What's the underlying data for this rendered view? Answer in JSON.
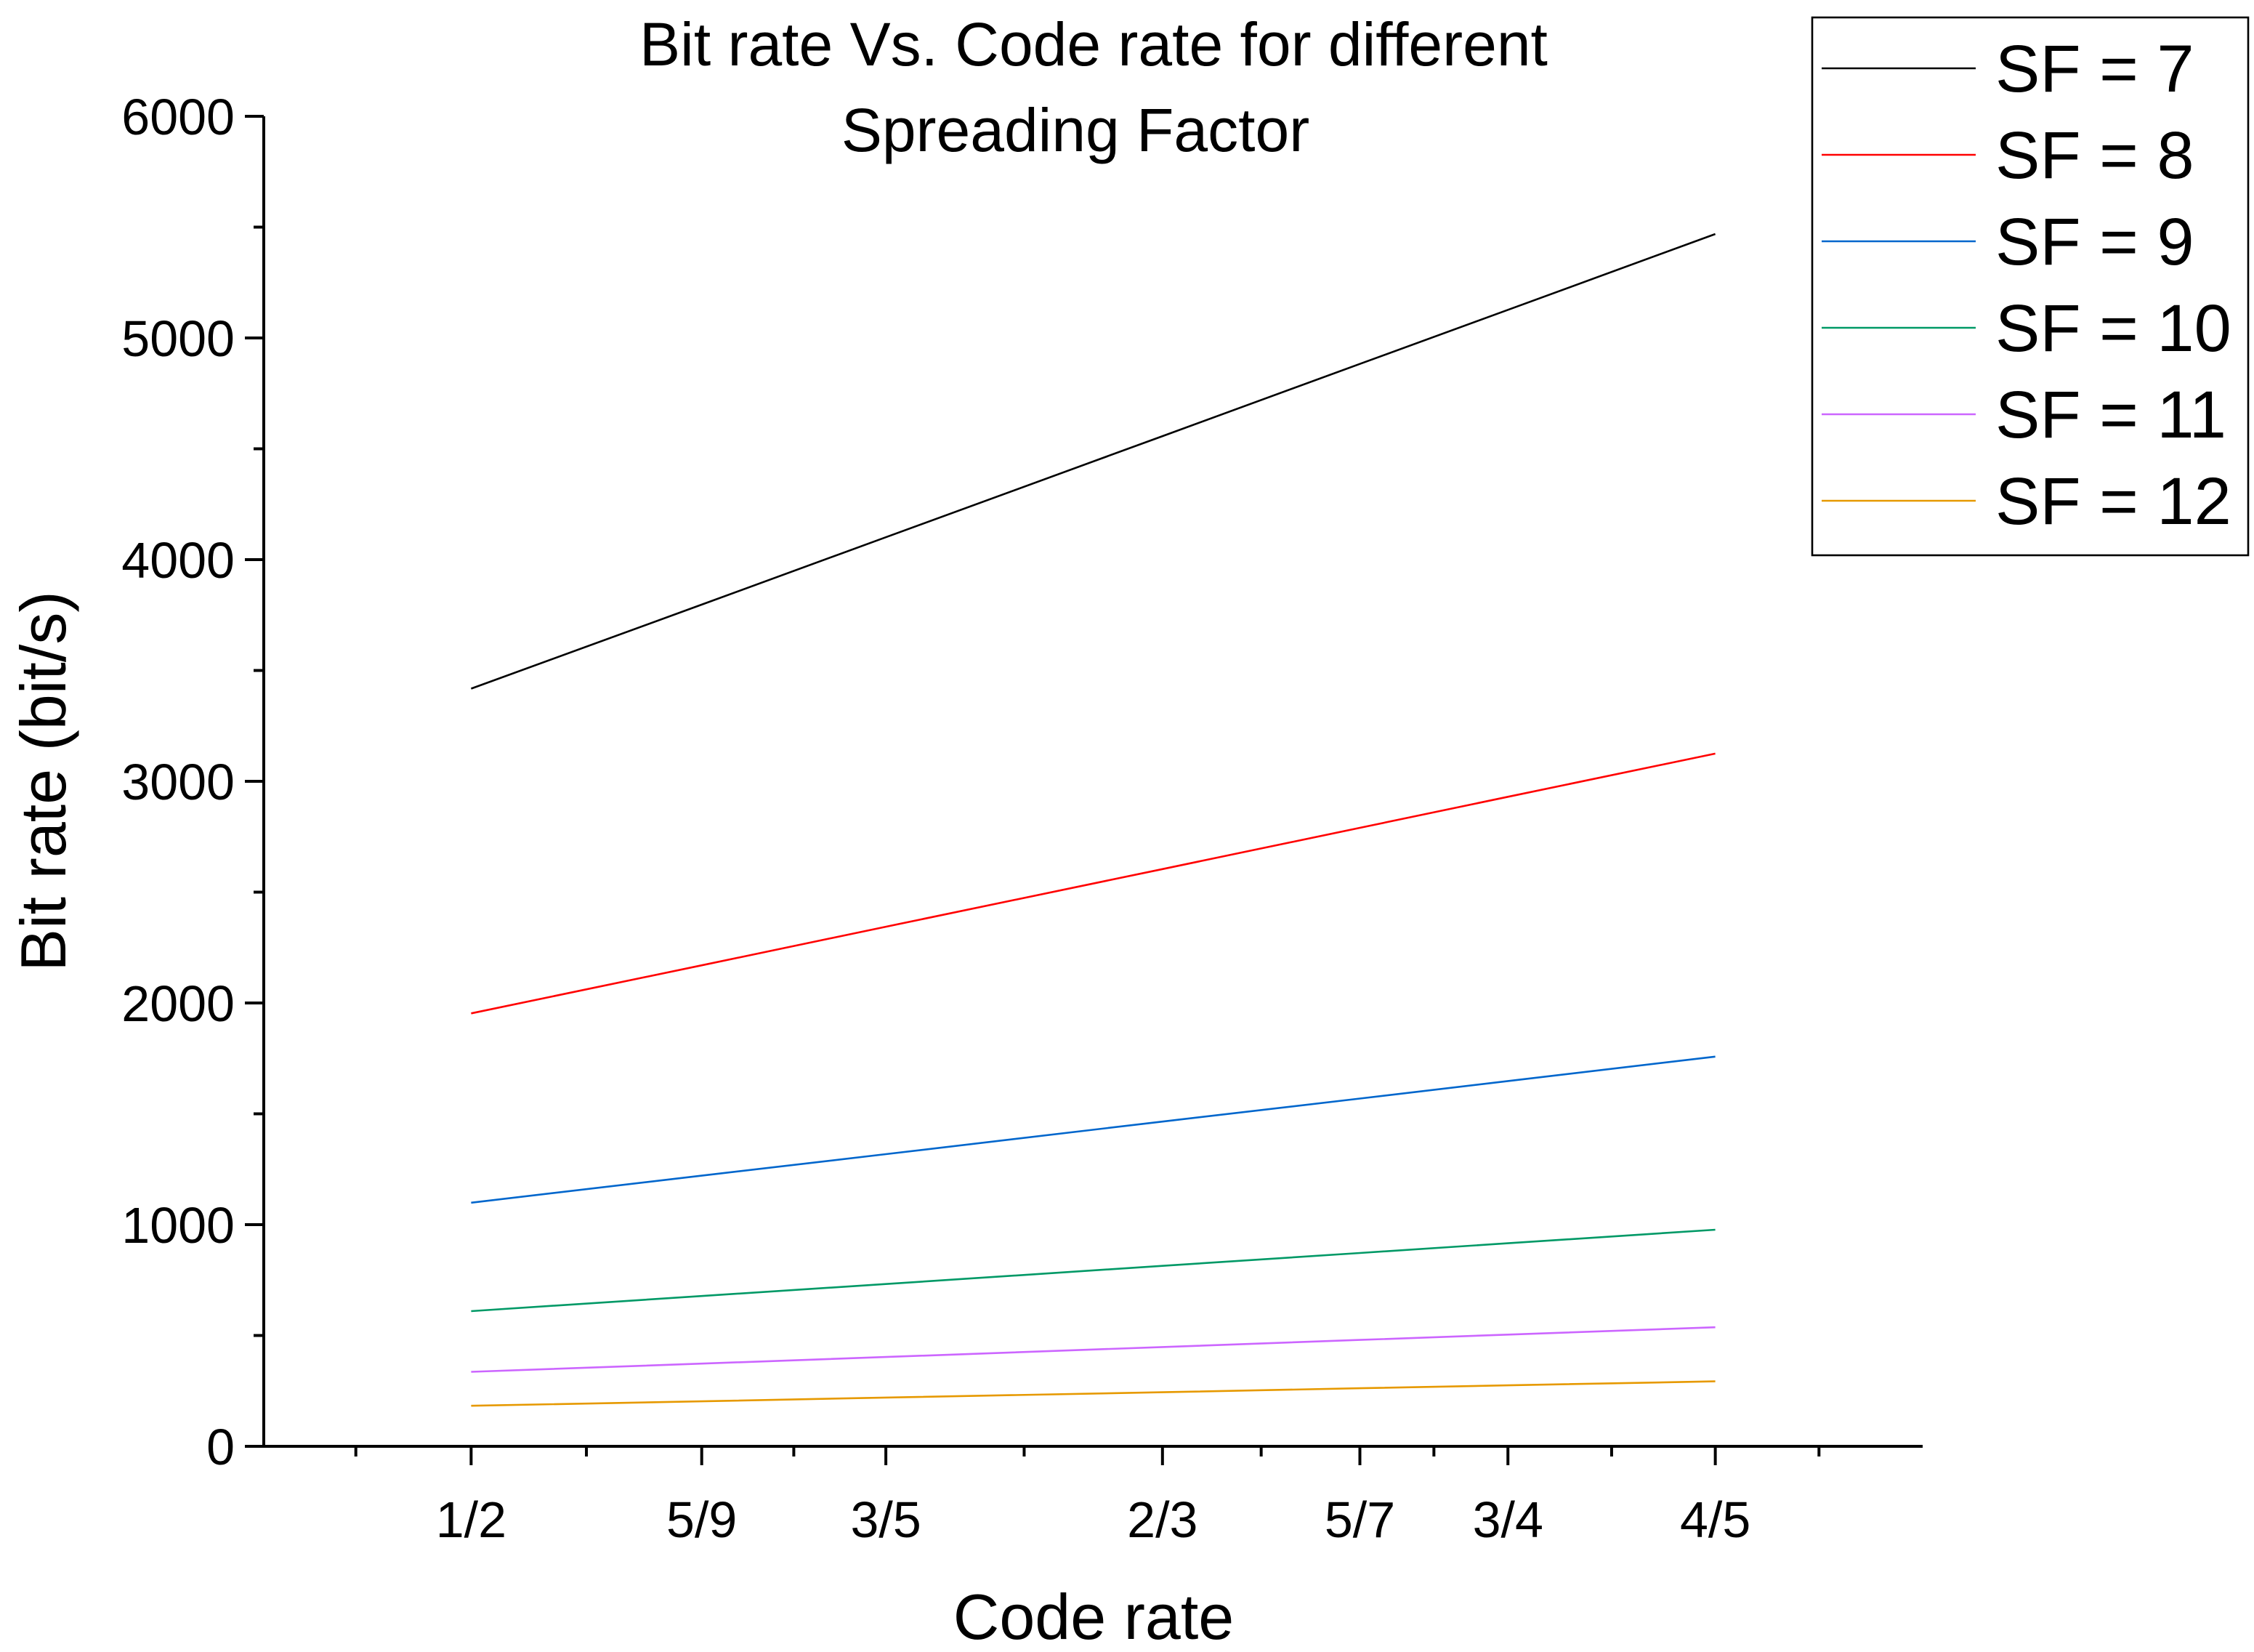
{
  "chart_data": {
    "type": "line",
    "title_lines": [
      "Bit rate Vs. Code rate for different",
      "Spreading Factor"
    ],
    "xlabel": "Code rate",
    "ylabel": "Bit rate (bit/s)",
    "categories": [
      "1/2",
      "5/9",
      "3/5",
      "2/3",
      "5/7",
      "3/4",
      "4/5"
    ],
    "x_values": [
      0.5,
      0.5556,
      0.6,
      0.6667,
      0.7143,
      0.75,
      0.8
    ],
    "ylim": [
      0,
      6000
    ],
    "y_major_ticks": [
      0,
      1000,
      2000,
      3000,
      4000,
      5000,
      6000
    ],
    "y_minor_step": 500,
    "grid": false,
    "legend_position": "top-right",
    "series": [
      {
        "name": "SF = 7",
        "color": "#000000",
        "values": [
          3418,
          3797,
          4101,
          4557,
          4883,
          5127,
          5469
        ]
      },
      {
        "name": "SF = 8",
        "color": "#ff0000",
        "values": [
          1953,
          2170,
          2344,
          2604,
          2790,
          2930,
          3125
        ]
      },
      {
        "name": "SF = 9",
        "color": "#0066cc",
        "values": [
          1099,
          1221,
          1318,
          1465,
          1569,
          1648,
          1758
        ]
      },
      {
        "name": "SF = 10",
        "color": "#009966",
        "values": [
          610,
          678,
          732,
          814,
          872,
          916,
          977
        ]
      },
      {
        "name": "SF = 11",
        "color": "#cc66ff",
        "values": [
          336,
          373,
          403,
          448,
          480,
          504,
          537
        ]
      },
      {
        "name": "SF = 12",
        "color": "#e69900",
        "values": [
          183,
          203,
          220,
          244,
          262,
          275,
          293
        ]
      }
    ]
  }
}
